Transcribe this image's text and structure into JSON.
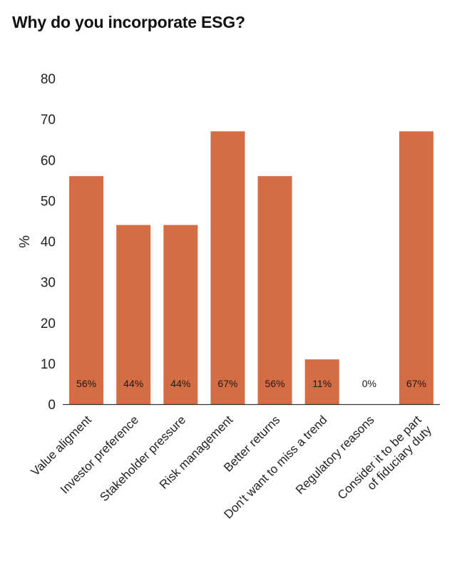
{
  "title": "Why do you incorporate ESG?",
  "colors": {
    "bar": "#D46D43",
    "axis": "#333333",
    "text": "#222222"
  },
  "chart_data": {
    "type": "bar",
    "title": "Why do you incorporate ESG?",
    "xlabel": "",
    "ylabel": "%",
    "ylim": [
      0,
      80
    ],
    "yticks": [
      "0",
      "10",
      "20",
      "30",
      "40",
      "50",
      "60",
      "70",
      "80"
    ],
    "grid": false,
    "legend": "none",
    "categories": [
      [
        "Value aligment"
      ],
      [
        "Investor preference"
      ],
      [
        "Stakeholder pressure"
      ],
      [
        "Risk management"
      ],
      [
        "Better returns"
      ],
      [
        "Don't want to miss a trend"
      ],
      [
        "Regulatory reasons"
      ],
      [
        "Consider it to be part",
        "of fiduciary duty"
      ]
    ],
    "values": [
      56,
      44,
      44,
      67,
      56,
      11,
      0,
      67
    ],
    "data_labels": [
      "56%",
      "44%",
      "44%",
      "67%",
      "56%",
      "11%",
      "0%",
      "67%"
    ]
  }
}
